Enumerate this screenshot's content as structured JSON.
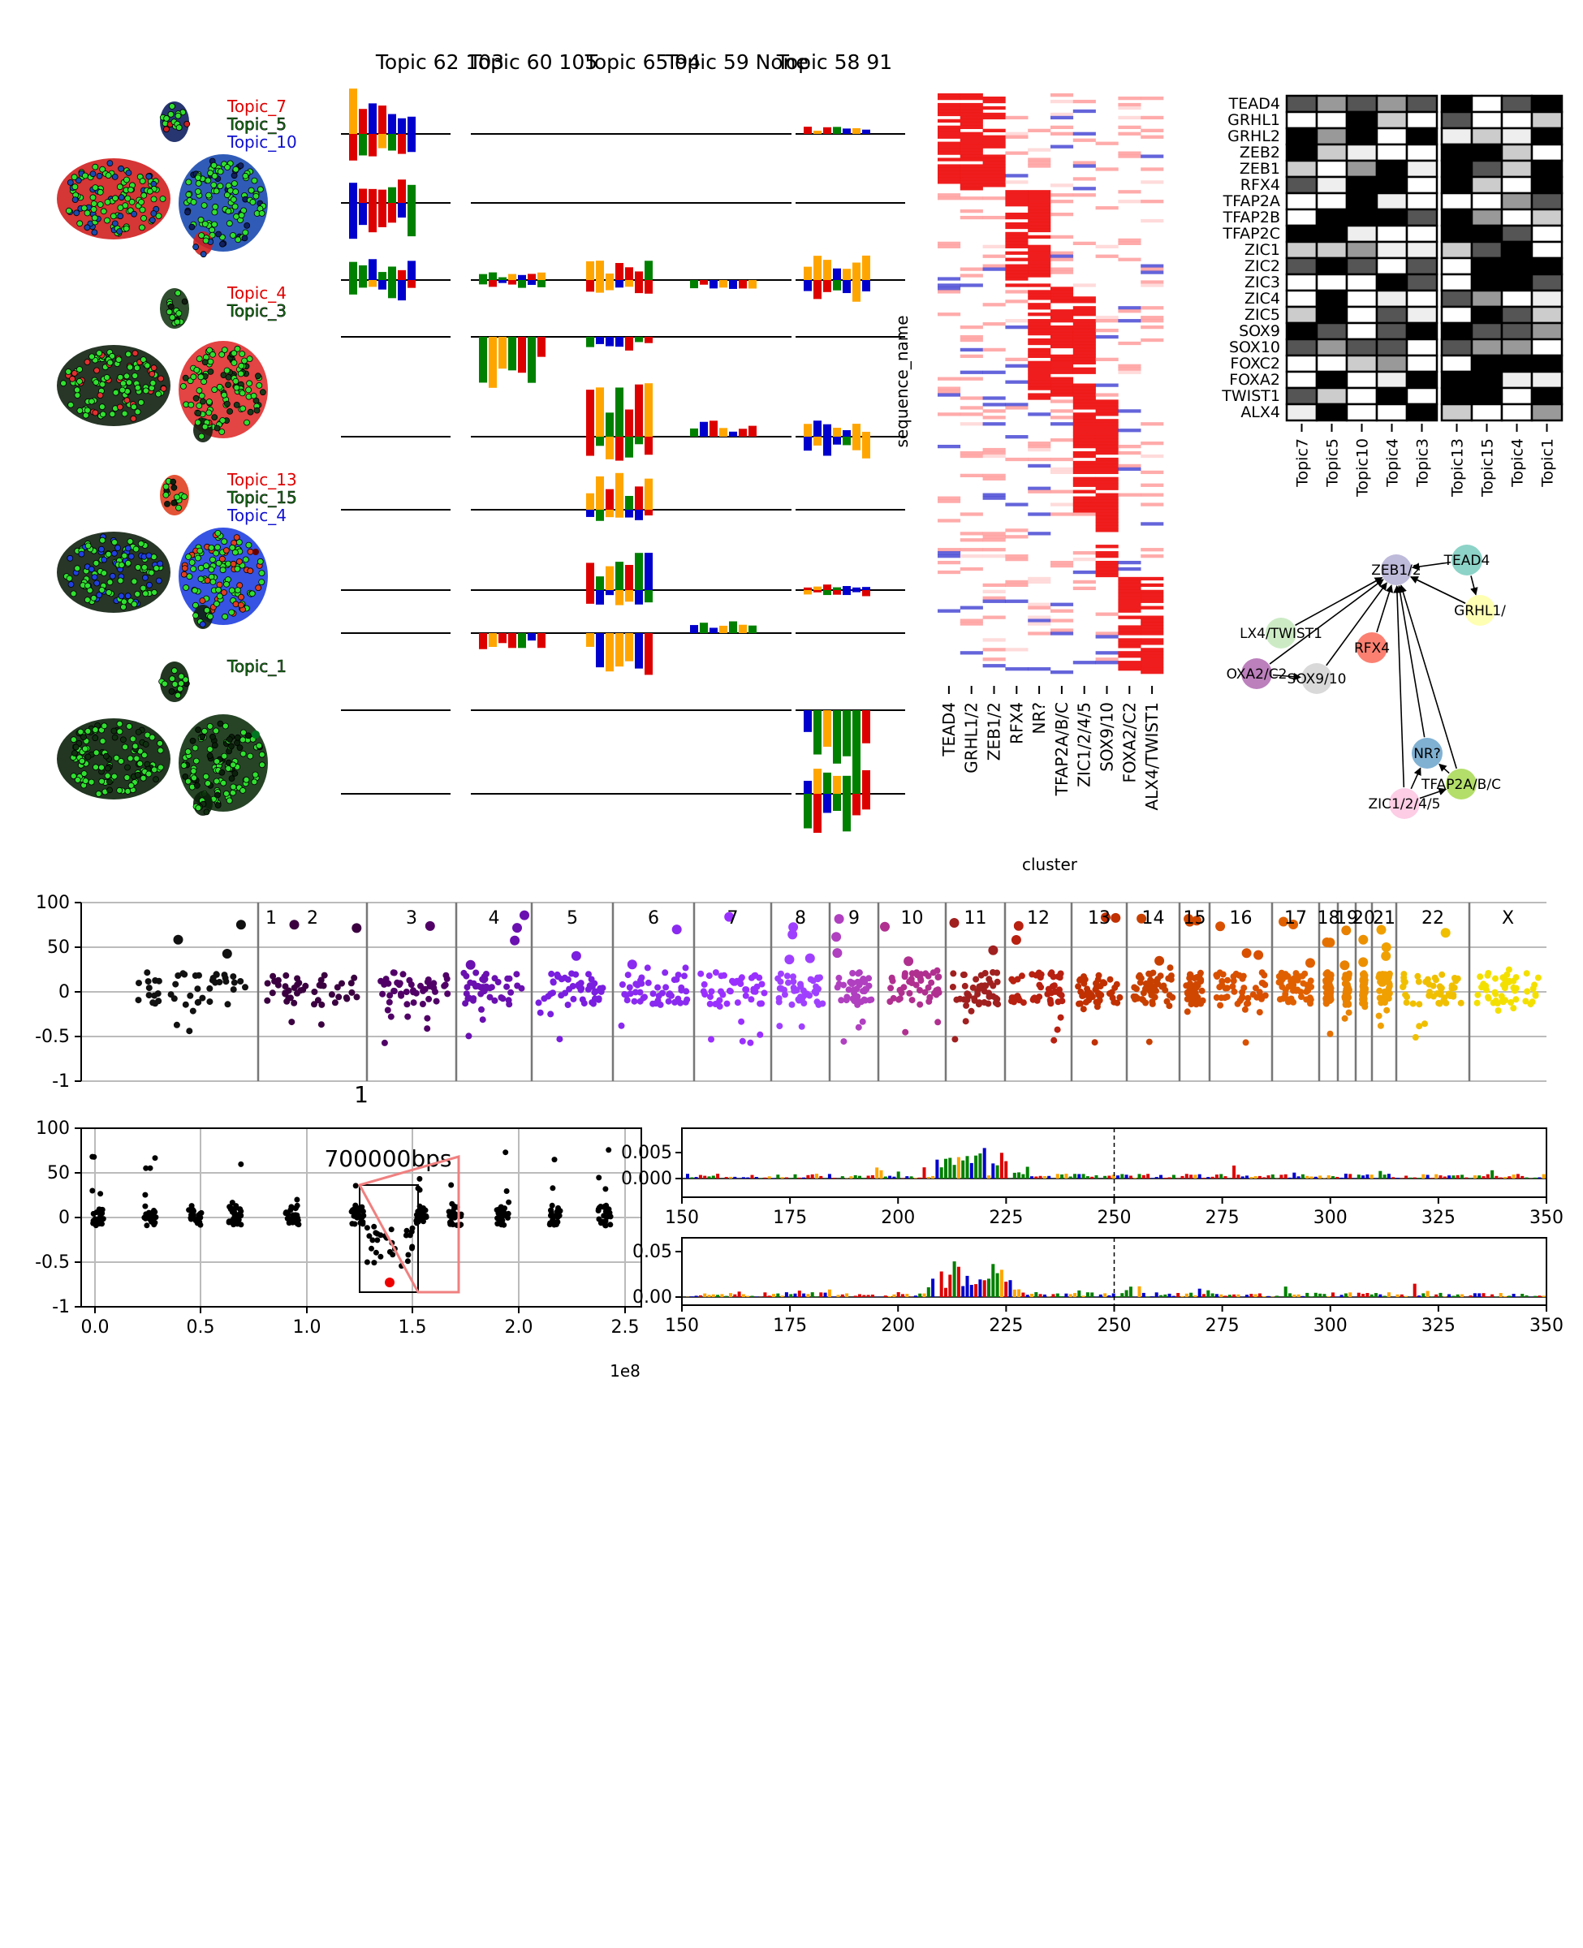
{
  "umap": {
    "groups": [
      {
        "labels": [
          {
            "text": "Topic_7",
            "color": "#e00000"
          },
          {
            "text": "Topic_5",
            "color": "#1a7a1a"
          },
          {
            "text": "Topic_10",
            "color": "#1010d0"
          }
        ]
      },
      {
        "labels": [
          {
            "text": "Topic_4",
            "color": "#e00000"
          },
          {
            "text": "Topic_3",
            "color": "#1a7a1a"
          }
        ]
      },
      {
        "labels": [
          {
            "text": "Topic_13",
            "color": "#e00000"
          },
          {
            "text": "Topic_15",
            "color": "#1a7a1a"
          },
          {
            "text": "Topic_4",
            "color": "#1010d0"
          }
        ]
      },
      {
        "labels": [
          {
            "text": "Topic_1",
            "color": "#1a7a1a"
          }
        ]
      }
    ]
  },
  "logos": {
    "titles": [
      "Topic 62 103",
      "Topic 60 105",
      "Topic 65 94",
      "Topic 59 None",
      "Topic 58 91"
    ],
    "logo_colors": {
      "A": "#008000",
      "C": "#0000cc",
      "G": "#ffa500",
      "T": "#dd0000"
    }
  },
  "heatmap": {
    "ylabel": "sequence_name",
    "xlabel": "cluster",
    "columns": [
      "TEAD4",
      "GRHL1/2",
      "ZEB1/2",
      "RFX4",
      "NR?",
      "TFAP2A/B/C",
      "ZIC1/2/4/5",
      "SOX9/10",
      "FOXA2/C2",
      "ALX4/TWIST1"
    ]
  },
  "matrix": {
    "rows": [
      "TEAD4",
      "GRHL1",
      "GRHL2",
      "ZEB2",
      "ZEB1",
      "RFX4",
      "TFAP2A",
      "TFAP2B",
      "TFAP2C",
      "ZIC1",
      "ZIC2",
      "ZIC3",
      "ZIC4",
      "ZIC5",
      "SOX9",
      "SOX10",
      "FOXC2",
      "FOXA2",
      "TWIST1",
      "ALX4"
    ],
    "cols_left": [
      "Topic7",
      "Topic5",
      "Topic10",
      "Topic4",
      "Topic3"
    ],
    "cols_right": [
      "Topic13",
      "Topic15",
      "Topic4",
      "Topic1"
    ]
  },
  "network": {
    "nodes": [
      {
        "id": "zeb",
        "label": "ZEB1/2",
        "color": "#bebada"
      },
      {
        "id": "tead",
        "label": "TEAD4",
        "color": "#8dd3c7"
      },
      {
        "id": "grhl",
        "label": "GRHL1/",
        "color": "#ffffb3"
      },
      {
        "id": "alx",
        "label": "LX4/TWIST1",
        "color": "#ccebc5"
      },
      {
        "id": "rfx",
        "label": "RFX4",
        "color": "#fb8072"
      },
      {
        "id": "foxa",
        "label": "OXA2/C2",
        "color": "#bc80bd"
      },
      {
        "id": "sox",
        "label": "SOX9/10",
        "color": "#d9d9d9"
      },
      {
        "id": "nr",
        "label": "NR?",
        "color": "#80b1d3"
      },
      {
        "id": "tfap",
        "label": "TFAP2A/B/C",
        "color": "#b3de69"
      },
      {
        "id": "zic",
        "label": "ZIC1/2/4/5",
        "color": "#fccde5"
      }
    ]
  },
  "manhattan": {
    "chromosomes": [
      "1",
      "2",
      "3",
      "4",
      "5",
      "6",
      "7",
      "8",
      "9",
      "10",
      "11",
      "12",
      "13",
      "14",
      "15",
      "16",
      "17",
      "18",
      "19",
      "20",
      "21",
      "22",
      "X"
    ],
    "yticks": [
      "100",
      "50",
      "0",
      "-0.5",
      "-1"
    ]
  },
  "chr_zoom": {
    "title": "1",
    "window_label": "700000bps",
    "xticks": [
      "0.0",
      "0.5",
      "1.0",
      "1.5",
      "2.0",
      "2.5"
    ],
    "xoffset": "1e8",
    "yticks": [
      "100",
      "50",
      "0",
      "-0.5",
      "-1"
    ]
  },
  "contrib": {
    "top": {
      "yticks": [
        "0.005",
        "0.000"
      ]
    },
    "bottom": {
      "yticks": [
        "0.05",
        "0.00"
      ]
    },
    "xticks": [
      "150",
      "175",
      "200",
      "225",
      "250",
      "275",
      "300",
      "325",
      "350"
    ]
  }
}
